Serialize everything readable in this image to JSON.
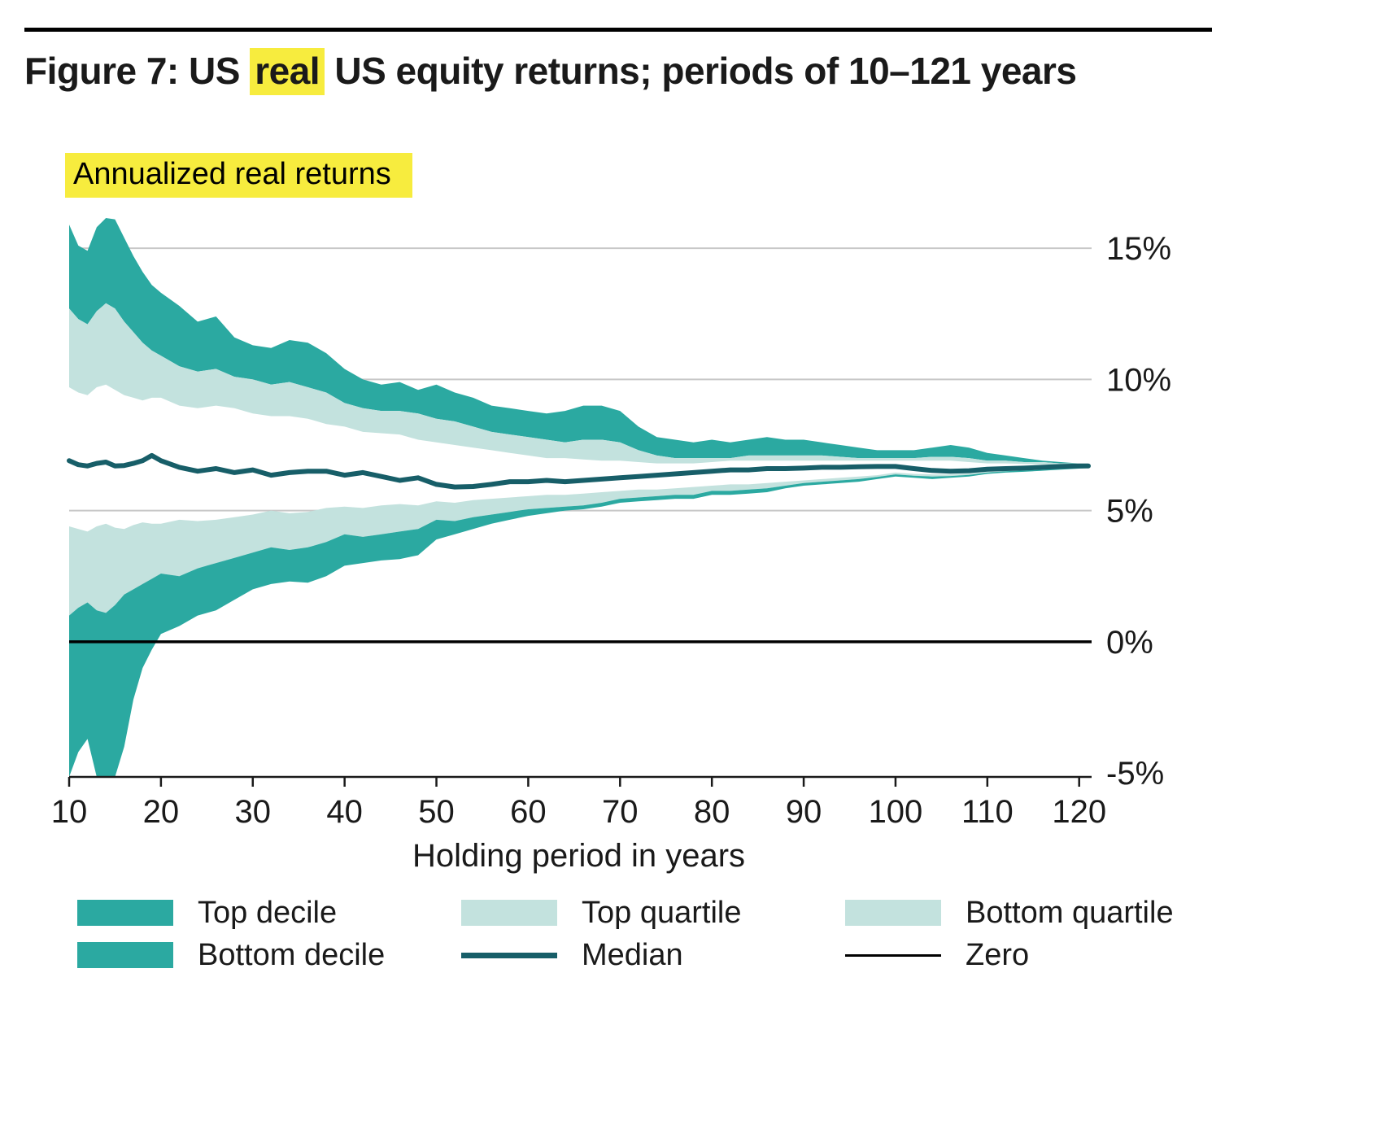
{
  "figure": {
    "title_pre": "Figure 7: US ",
    "title_highlight": "real",
    "title_post": " US equity returns; periods of 10–121 years",
    "subtitle": "Annualized real returns"
  },
  "colors": {
    "dark_teal": "#2BA9A1",
    "light_teal": "#C3E2DE",
    "median": "#175E68",
    "zero": "#000000",
    "grid": "#C8C8C8",
    "highlight": "#F7EC3E"
  },
  "chart_data": {
    "type": "area",
    "title": "Figure 7: US real US equity returns; periods of 10–121 years",
    "subtitle": "Annualized real returns",
    "xlabel": "Holding period in years",
    "ylabel": "Annualized real returns (%)",
    "xlim": [
      10,
      121
    ],
    "ylim": [
      -5.15,
      16.15
    ],
    "x_ticks": [
      10,
      20,
      30,
      40,
      50,
      60,
      70,
      80,
      90,
      100,
      110,
      120
    ],
    "y_ticks": [
      {
        "value": 15,
        "label": "15%"
      },
      {
        "value": 10,
        "label": "10%"
      },
      {
        "value": 5,
        "label": "5%"
      },
      {
        "value": 0,
        "label": "0%"
      },
      {
        "value": -5,
        "label": "-5%"
      }
    ],
    "gridlines": [
      15,
      10,
      5
    ],
    "zero": 0,
    "legend_position": "bottom",
    "x": [
      10,
      11,
      12,
      13,
      14,
      15,
      16,
      17,
      18,
      19,
      20,
      22,
      24,
      26,
      28,
      30,
      32,
      34,
      36,
      38,
      40,
      42,
      44,
      46,
      48,
      50,
      52,
      54,
      56,
      58,
      60,
      62,
      64,
      66,
      68,
      70,
      72,
      74,
      76,
      78,
      80,
      82,
      84,
      86,
      88,
      90,
      92,
      94,
      96,
      98,
      100,
      102,
      104,
      106,
      108,
      110,
      112,
      114,
      116,
      118,
      120,
      121
    ],
    "series": {
      "max": [
        15.9,
        15.1,
        14.9,
        15.8,
        16.3,
        16.1,
        15.4,
        14.7,
        14.1,
        13.6,
        13.3,
        12.8,
        12.2,
        12.4,
        11.6,
        11.3,
        11.2,
        11.5,
        11.4,
        11.0,
        10.4,
        10.0,
        9.8,
        9.9,
        9.6,
        9.8,
        9.5,
        9.3,
        9.0,
        8.9,
        8.8,
        8.7,
        8.8,
        9.0,
        9.0,
        8.8,
        8.2,
        7.8,
        7.7,
        7.6,
        7.7,
        7.6,
        7.7,
        7.8,
        7.7,
        7.7,
        7.6,
        7.5,
        7.4,
        7.3,
        7.3,
        7.3,
        7.4,
        7.5,
        7.4,
        7.2,
        7.1,
        7.0,
        6.9,
        6.85,
        6.8,
        6.8
      ],
      "p90": [
        12.7,
        12.3,
        12.1,
        12.6,
        12.9,
        12.7,
        12.2,
        11.8,
        11.4,
        11.1,
        10.9,
        10.5,
        10.3,
        10.4,
        10.1,
        10.0,
        9.8,
        9.9,
        9.7,
        9.5,
        9.1,
        8.9,
        8.8,
        8.8,
        8.7,
        8.5,
        8.4,
        8.2,
        8.0,
        7.9,
        7.8,
        7.7,
        7.6,
        7.7,
        7.7,
        7.6,
        7.3,
        7.1,
        7.0,
        7.0,
        7.0,
        7.0,
        7.1,
        7.1,
        7.1,
        7.1,
        7.1,
        7.05,
        7.0,
        7.0,
        7.0,
        7.0,
        7.05,
        7.05,
        7.0,
        6.9,
        6.9,
        6.85,
        6.85,
        6.8,
        6.8,
        6.8
      ],
      "p75": [
        9.7,
        9.5,
        9.4,
        9.7,
        9.8,
        9.6,
        9.4,
        9.3,
        9.2,
        9.3,
        9.3,
        9.0,
        8.9,
        9.0,
        8.9,
        8.7,
        8.6,
        8.6,
        8.5,
        8.3,
        8.2,
        8.0,
        7.95,
        7.9,
        7.7,
        7.6,
        7.5,
        7.4,
        7.3,
        7.2,
        7.1,
        7.0,
        7.0,
        6.95,
        6.9,
        6.9,
        6.85,
        6.8,
        6.8,
        6.8,
        6.85,
        6.9,
        6.9,
        6.9,
        6.9,
        6.9,
        6.9,
        6.9,
        6.9,
        6.9,
        6.9,
        6.9,
        6.9,
        6.9,
        6.85,
        6.8,
        6.8,
        6.78,
        6.76,
        6.75,
        6.75,
        6.75
      ],
      "median": [
        6.9,
        6.75,
        6.7,
        6.8,
        6.85,
        6.7,
        6.72,
        6.8,
        6.9,
        7.1,
        6.9,
        6.65,
        6.5,
        6.6,
        6.45,
        6.55,
        6.35,
        6.45,
        6.5,
        6.5,
        6.35,
        6.45,
        6.3,
        6.15,
        6.25,
        6.0,
        5.9,
        5.92,
        6.0,
        6.1,
        6.1,
        6.15,
        6.1,
        6.15,
        6.2,
        6.25,
        6.3,
        6.35,
        6.4,
        6.45,
        6.5,
        6.55,
        6.55,
        6.6,
        6.6,
        6.62,
        6.65,
        6.65,
        6.67,
        6.68,
        6.68,
        6.6,
        6.53,
        6.5,
        6.52,
        6.58,
        6.6,
        6.62,
        6.65,
        6.68,
        6.7,
        6.7
      ],
      "p25": [
        4.4,
        4.3,
        4.2,
        4.4,
        4.5,
        4.35,
        4.3,
        4.45,
        4.55,
        4.5,
        4.5,
        4.65,
        4.6,
        4.65,
        4.75,
        4.85,
        5.0,
        4.9,
        4.95,
        5.1,
        5.15,
        5.1,
        5.2,
        5.25,
        5.2,
        5.35,
        5.3,
        5.4,
        5.45,
        5.5,
        5.55,
        5.6,
        5.6,
        5.65,
        5.7,
        5.75,
        5.8,
        5.8,
        5.85,
        5.9,
        5.95,
        6.0,
        6.0,
        6.05,
        6.1,
        6.15,
        6.2,
        6.25,
        6.3,
        6.35,
        6.45,
        6.4,
        6.38,
        6.38,
        6.42,
        6.5,
        6.55,
        6.58,
        6.6,
        6.63,
        6.65,
        6.67
      ],
      "p10": [
        1.0,
        1.3,
        1.5,
        1.2,
        1.1,
        1.4,
        1.8,
        2.0,
        2.2,
        2.4,
        2.6,
        2.5,
        2.8,
        3.0,
        3.2,
        3.4,
        3.6,
        3.5,
        3.6,
        3.8,
        4.1,
        4.0,
        4.1,
        4.2,
        4.3,
        4.65,
        4.6,
        4.75,
        4.85,
        4.95,
        5.05,
        5.1,
        5.15,
        5.2,
        5.3,
        5.45,
        5.5,
        5.55,
        5.6,
        5.6,
        5.75,
        5.75,
        5.8,
        5.85,
        5.95,
        6.05,
        6.1,
        6.15,
        6.2,
        6.28,
        6.38,
        6.33,
        6.3,
        6.32,
        6.36,
        6.45,
        6.5,
        6.53,
        6.56,
        6.6,
        6.62,
        6.65
      ],
      "min": [
        -5.5,
        -4.2,
        -3.7,
        -5.2,
        -5.6,
        -5.3,
        -4.0,
        -2.2,
        -1.0,
        -0.3,
        0.3,
        0.6,
        1.0,
        1.2,
        1.6,
        2.0,
        2.2,
        2.3,
        2.25,
        2.5,
        2.9,
        3.0,
        3.1,
        3.15,
        3.3,
        3.9,
        4.1,
        4.3,
        4.5,
        4.65,
        4.8,
        4.9,
        5.0,
        5.05,
        5.15,
        5.3,
        5.35,
        5.4,
        5.45,
        5.45,
        5.6,
        5.6,
        5.65,
        5.7,
        5.85,
        5.95,
        6.0,
        6.05,
        6.1,
        6.2,
        6.3,
        6.25,
        6.2,
        6.25,
        6.3,
        6.4,
        6.45,
        6.48,
        6.52,
        6.56,
        6.6,
        6.62
      ]
    },
    "bands": [
      {
        "name": "top-decile",
        "upper": "max",
        "lower": "p90",
        "color": "dark_teal"
      },
      {
        "name": "top-quartile",
        "upper": "p90",
        "lower": "p75",
        "color": "light_teal"
      },
      {
        "name": "bottom-quartile",
        "upper": "p25",
        "lower": "p10",
        "color": "light_teal"
      },
      {
        "name": "bottom-decile",
        "upper": "p10",
        "lower": "min",
        "color": "dark_teal"
      }
    ]
  },
  "legend": {
    "items": [
      {
        "label": "Top decile",
        "swatch": "fill-dark"
      },
      {
        "label": "Top quartile",
        "swatch": "fill-light"
      },
      {
        "label": "Bottom quartile",
        "swatch": "fill-light"
      },
      {
        "label": "Bottom decile",
        "swatch": "fill-dark"
      },
      {
        "label": "Median",
        "swatch": "line-median"
      },
      {
        "label": "Zero",
        "swatch": "line-zero"
      }
    ]
  }
}
